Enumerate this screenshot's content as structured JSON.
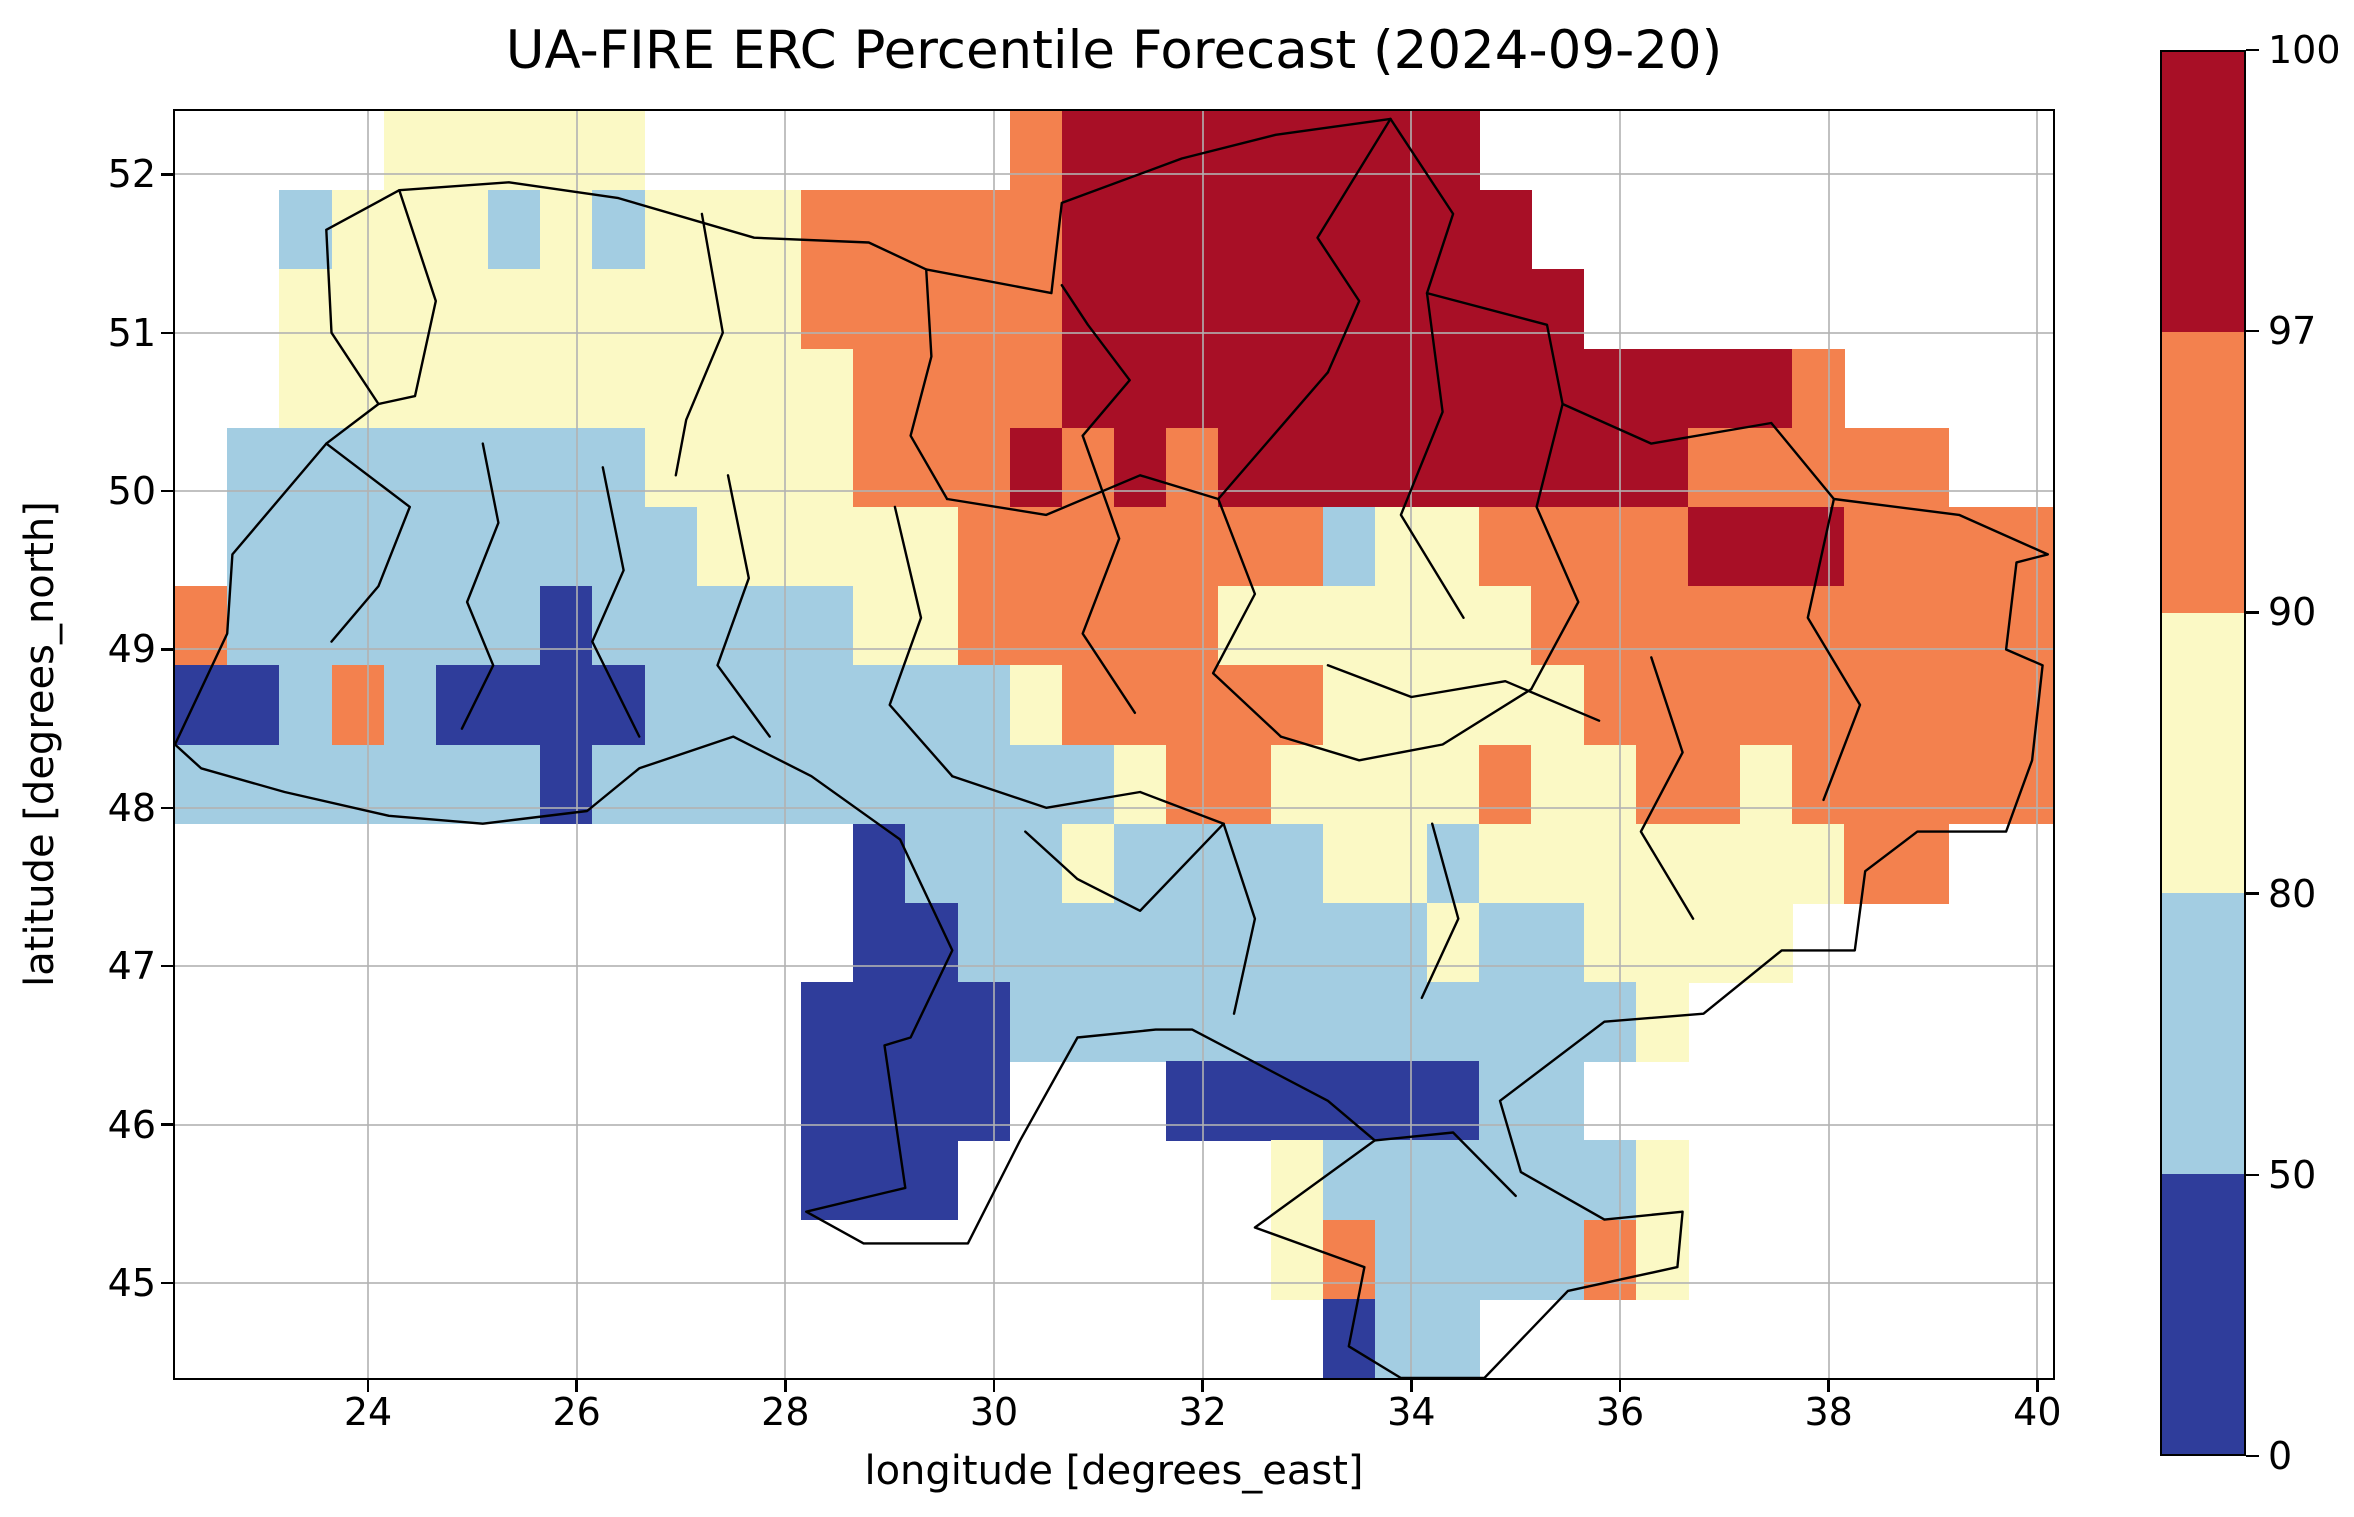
{
  "figure": {
    "title": "UA-FIRE ERC Percentile Forecast (2024-09-20)",
    "xlabel": "longitude [degrees_east]",
    "ylabel": "latitude [degrees_north]"
  },
  "chart_data": {
    "type": "heatmap",
    "title": "UA-FIRE ERC Percentile Forecast (2024-09-20)",
    "xlabel": "longitude [degrees_east]",
    "ylabel": "latitude [degrees_north]",
    "units": "ERC percentile",
    "xlim": [
      22.15,
      40.15
    ],
    "ylim": [
      44.4,
      52.4
    ],
    "x_ticks": [
      24,
      26,
      28,
      30,
      32,
      34,
      36,
      38,
      40
    ],
    "y_ticks": [
      45,
      46,
      47,
      48,
      49,
      50,
      51,
      52
    ],
    "grid_on": true,
    "colorbar": {
      "ticks": [
        100,
        97,
        90,
        80,
        50,
        0
      ],
      "bins": [
        {
          "label": "97-100",
          "color": "#a80f26"
        },
        {
          "label": "90-97",
          "color": "#f3814e"
        },
        {
          "label": "80-90",
          "color": "#fbf9c5"
        },
        {
          "label": "50-80",
          "color": "#a3cde2"
        },
        {
          "label": "0-50",
          "color": "#2f3d9b"
        }
      ]
    },
    "grid": {
      "lon_left": 22.15,
      "lat_top": 52.4,
      "cell_deg": 0.5,
      "colors": {
        "1": "#2f3d9b",
        "2": "#a3cde2",
        "3": "#fbf9c5",
        "4": "#f3814e",
        "5": "#a80f26"
      },
      "legend": {
        "1": "0-50",
        "2": "50-80",
        "3": "80-90",
        "4": "90-97",
        "5": "97-100",
        ".": "no data"
      },
      "rows": [
        [
          [
            4,
            "."
          ],
          [
            5,
            "3"
          ],
          [
            7,
            "."
          ],
          [
            1,
            "4"
          ],
          [
            8,
            "5"
          ],
          [
            11,
            "."
          ]
        ],
        [
          [
            2,
            "."
          ],
          [
            1,
            "2"
          ],
          [
            3,
            "3"
          ],
          [
            1,
            "2"
          ],
          [
            1,
            "3"
          ],
          [
            1,
            "2"
          ],
          [
            3,
            "3"
          ],
          [
            5,
            "4"
          ],
          [
            9,
            "5"
          ],
          [
            10,
            "."
          ]
        ],
        [
          [
            2,
            "."
          ],
          [
            10,
            "3"
          ],
          [
            5,
            "4"
          ],
          [
            10,
            "5"
          ],
          [
            9,
            "."
          ]
        ],
        [
          [
            2,
            "."
          ],
          [
            11,
            "3"
          ],
          [
            4,
            "4"
          ],
          [
            14,
            "5"
          ],
          [
            1,
            "4"
          ],
          [
            4,
            "."
          ]
        ],
        [
          [
            1,
            "."
          ],
          [
            8,
            "2"
          ],
          [
            4,
            "3"
          ],
          [
            3,
            "4"
          ],
          [
            1,
            "5"
          ],
          [
            1,
            "4"
          ],
          [
            1,
            "5"
          ],
          [
            1,
            "4"
          ],
          [
            9,
            "5"
          ],
          [
            5,
            "4"
          ],
          [
            2,
            "."
          ]
        ],
        [
          [
            1,
            "."
          ],
          [
            9,
            "2"
          ],
          [
            5,
            "3"
          ],
          [
            7,
            "4"
          ],
          [
            1,
            "2"
          ],
          [
            2,
            "3"
          ],
          [
            4,
            "4"
          ],
          [
            3,
            "5"
          ],
          [
            4,
            "4"
          ]
        ],
        [
          [
            1,
            "4"
          ],
          [
            6,
            "2"
          ],
          [
            1,
            "1"
          ],
          [
            5,
            "2"
          ],
          [
            2,
            "3"
          ],
          [
            5,
            "4"
          ],
          [
            6,
            "3"
          ],
          [
            10,
            "4"
          ]
        ],
        [
          [
            2,
            "1"
          ],
          [
            1,
            "2"
          ],
          [
            1,
            "4"
          ],
          [
            1,
            "2"
          ],
          [
            4,
            "1"
          ],
          [
            7,
            "2"
          ],
          [
            1,
            "3"
          ],
          [
            5,
            "4"
          ],
          [
            5,
            "3"
          ],
          [
            9,
            "4"
          ]
        ],
        [
          [
            7,
            "2"
          ],
          [
            1,
            "1"
          ],
          [
            10,
            "2"
          ],
          [
            1,
            "3"
          ],
          [
            2,
            "4"
          ],
          [
            4,
            "3"
          ],
          [
            1,
            "4"
          ],
          [
            2,
            "3"
          ],
          [
            2,
            "4"
          ],
          [
            1,
            "3"
          ],
          [
            5,
            "4"
          ]
        ],
        [
          [
            13,
            "."
          ],
          [
            1,
            "1"
          ],
          [
            3,
            "2"
          ],
          [
            1,
            "3"
          ],
          [
            4,
            "2"
          ],
          [
            2,
            "3"
          ],
          [
            1,
            "2"
          ],
          [
            7,
            "3"
          ],
          [
            2,
            "4"
          ],
          [
            2,
            "."
          ]
        ],
        [
          [
            13,
            "."
          ],
          [
            2,
            "1"
          ],
          [
            9,
            "2"
          ],
          [
            1,
            "3"
          ],
          [
            2,
            "2"
          ],
          [
            4,
            "3"
          ],
          [
            5,
            "."
          ]
        ],
        [
          [
            12,
            "."
          ],
          [
            4,
            "1"
          ],
          [
            12,
            "2"
          ],
          [
            1,
            "3"
          ],
          [
            7,
            "."
          ]
        ],
        [
          [
            12,
            "."
          ],
          [
            4,
            "1"
          ],
          [
            3,
            "."
          ],
          [
            6,
            "1"
          ],
          [
            2,
            "2"
          ],
          [
            9,
            "."
          ]
        ],
        [
          [
            12,
            "."
          ],
          [
            3,
            "1"
          ],
          [
            6,
            "."
          ],
          [
            1,
            "3"
          ],
          [
            6,
            "2"
          ],
          [
            1,
            "3"
          ],
          [
            7,
            "."
          ]
        ],
        [
          [
            21,
            "."
          ],
          [
            1,
            "3"
          ],
          [
            1,
            "4"
          ],
          [
            4,
            "2"
          ],
          [
            1,
            "4"
          ],
          [
            1,
            "3"
          ],
          [
            7,
            "."
          ]
        ],
        [
          [
            22,
            "."
          ],
          [
            1,
            "1"
          ],
          [
            2,
            "2"
          ],
          [
            11,
            "."
          ]
        ]
      ]
    },
    "borders": {
      "outline": [
        [
          23.6,
          51.65
        ],
        [
          24.3,
          51.9
        ],
        [
          25.35,
          51.95
        ],
        [
          26.4,
          51.85
        ],
        [
          27.7,
          51.6
        ],
        [
          28.8,
          51.57
        ],
        [
          29.35,
          51.4
        ],
        [
          30.55,
          51.25
        ],
        [
          30.65,
          51.82
        ],
        [
          31.8,
          52.1
        ],
        [
          32.7,
          52.25
        ],
        [
          33.8,
          52.35
        ],
        [
          34.4,
          51.75
        ],
        [
          34.15,
          51.25
        ],
        [
          35.3,
          51.05
        ],
        [
          35.45,
          50.55
        ],
        [
          36.3,
          50.3
        ],
        [
          37.45,
          50.43
        ],
        [
          38.05,
          49.95
        ],
        [
          39.25,
          49.85
        ],
        [
          40.1,
          49.6
        ],
        [
          39.8,
          49.55
        ],
        [
          39.7,
          49.0
        ],
        [
          40.05,
          48.9
        ],
        [
          39.95,
          48.3
        ],
        [
          39.7,
          47.85
        ],
        [
          38.85,
          47.85
        ],
        [
          38.35,
          47.6
        ],
        [
          38.25,
          47.1
        ],
        [
          37.55,
          47.1
        ],
        [
          36.8,
          46.7
        ],
        [
          35.85,
          46.65
        ],
        [
          34.85,
          46.15
        ],
        [
          35.05,
          45.7
        ],
        [
          35.85,
          45.4
        ],
        [
          36.6,
          45.45
        ],
        [
          36.55,
          45.1
        ],
        [
          35.5,
          44.95
        ],
        [
          34.7,
          44.4
        ],
        [
          33.9,
          44.4
        ],
        [
          33.4,
          44.6
        ],
        [
          33.55,
          45.1
        ],
        [
          32.5,
          45.35
        ],
        [
          33.65,
          45.9
        ],
        [
          33.2,
          46.15
        ],
        [
          31.9,
          46.6
        ],
        [
          31.55,
          46.6
        ],
        [
          30.8,
          46.55
        ],
        [
          30.25,
          45.9
        ],
        [
          29.75,
          45.25
        ],
        [
          28.75,
          45.25
        ],
        [
          28.2,
          45.45
        ],
        [
          29.15,
          45.6
        ],
        [
          28.95,
          46.5
        ],
        [
          29.2,
          46.55
        ],
        [
          29.6,
          47.1
        ],
        [
          29.1,
          47.8
        ],
        [
          28.25,
          48.2
        ],
        [
          27.5,
          48.45
        ],
        [
          26.6,
          48.25
        ],
        [
          26.1,
          47.98
        ],
        [
          25.1,
          47.9
        ],
        [
          24.2,
          47.95
        ],
        [
          23.2,
          48.1
        ],
        [
          22.4,
          48.25
        ],
        [
          22.15,
          48.4
        ],
        [
          22.65,
          49.1
        ],
        [
          22.7,
          49.6
        ],
        [
          23.6,
          50.3
        ],
        [
          24.1,
          50.55
        ],
        [
          23.65,
          51.0
        ],
        [
          23.6,
          51.65
        ]
      ],
      "internal": [
        [
          [
            24.3,
            51.9
          ],
          [
            24.65,
            51.2
          ],
          [
            24.45,
            50.6
          ],
          [
            24.1,
            50.55
          ]
        ],
        [
          [
            27.2,
            51.75
          ],
          [
            27.4,
            51.0
          ],
          [
            27.05,
            50.45
          ],
          [
            26.95,
            50.1
          ]
        ],
        [
          [
            29.35,
            51.4
          ],
          [
            29.4,
            50.85
          ],
          [
            29.2,
            50.35
          ],
          [
            29.55,
            49.95
          ]
        ],
        [
          [
            30.65,
            51.3
          ],
          [
            30.9,
            51.05
          ],
          [
            31.3,
            50.7
          ],
          [
            30.85,
            50.35
          ]
        ],
        [
          [
            33.8,
            52.35
          ],
          [
            33.1,
            51.6
          ],
          [
            33.5,
            51.2
          ],
          [
            33.2,
            50.75
          ]
        ],
        [
          [
            29.55,
            49.95
          ],
          [
            30.5,
            49.85
          ],
          [
            31.4,
            50.1
          ],
          [
            32.15,
            49.95
          ],
          [
            33.2,
            50.75
          ]
        ],
        [
          [
            25.1,
            50.3
          ],
          [
            25.25,
            49.8
          ],
          [
            24.95,
            49.3
          ],
          [
            25.2,
            48.9
          ],
          [
            24.9,
            48.5
          ]
        ],
        [
          [
            26.25,
            50.15
          ],
          [
            26.45,
            49.5
          ],
          [
            26.15,
            49.05
          ],
          [
            26.6,
            48.45
          ]
        ],
        [
          [
            27.45,
            50.1
          ],
          [
            27.65,
            49.45
          ],
          [
            27.35,
            48.9
          ],
          [
            27.85,
            48.45
          ]
        ],
        [
          [
            29.05,
            49.9
          ],
          [
            29.3,
            49.2
          ],
          [
            29.0,
            48.65
          ],
          [
            29.6,
            48.2
          ]
        ],
        [
          [
            30.85,
            50.35
          ],
          [
            31.2,
            49.7
          ],
          [
            30.85,
            49.1
          ],
          [
            31.35,
            48.6
          ]
        ],
        [
          [
            32.15,
            49.95
          ],
          [
            32.5,
            49.35
          ],
          [
            32.1,
            48.85
          ],
          [
            32.75,
            48.45
          ]
        ],
        [
          [
            34.15,
            51.25
          ],
          [
            34.3,
            50.5
          ],
          [
            33.9,
            49.85
          ],
          [
            34.5,
            49.2
          ]
        ],
        [
          [
            35.45,
            50.55
          ],
          [
            35.2,
            49.9
          ],
          [
            35.6,
            49.3
          ],
          [
            35.15,
            48.75
          ]
        ],
        [
          [
            33.2,
            48.9
          ],
          [
            34.0,
            48.7
          ],
          [
            34.9,
            48.8
          ],
          [
            35.8,
            48.55
          ]
        ],
        [
          [
            36.3,
            48.95
          ],
          [
            36.6,
            48.35
          ],
          [
            36.2,
            47.85
          ],
          [
            36.7,
            47.3
          ]
        ],
        [
          [
            38.05,
            49.95
          ],
          [
            37.8,
            49.2
          ],
          [
            38.3,
            48.65
          ],
          [
            37.95,
            48.05
          ]
        ],
        [
          [
            29.6,
            48.2
          ],
          [
            30.5,
            48.0
          ],
          [
            31.4,
            48.1
          ],
          [
            32.2,
            47.9
          ]
        ],
        [
          [
            32.75,
            48.45
          ],
          [
            33.5,
            48.3
          ],
          [
            34.3,
            48.4
          ],
          [
            35.15,
            48.75
          ]
        ],
        [
          [
            32.2,
            47.9
          ],
          [
            32.5,
            47.3
          ],
          [
            32.3,
            46.7
          ]
        ],
        [
          [
            34.2,
            47.9
          ],
          [
            34.45,
            47.3
          ],
          [
            34.1,
            46.8
          ]
        ],
        [
          [
            30.3,
            47.85
          ],
          [
            30.8,
            47.55
          ],
          [
            31.4,
            47.35
          ],
          [
            32.2,
            47.9
          ]
        ],
        [
          [
            33.65,
            45.9
          ],
          [
            34.4,
            45.95
          ],
          [
            35.0,
            45.55
          ]
        ],
        [
          [
            23.6,
            50.3
          ],
          [
            24.4,
            49.9
          ],
          [
            24.1,
            49.4
          ],
          [
            23.65,
            49.05
          ]
        ]
      ]
    }
  }
}
